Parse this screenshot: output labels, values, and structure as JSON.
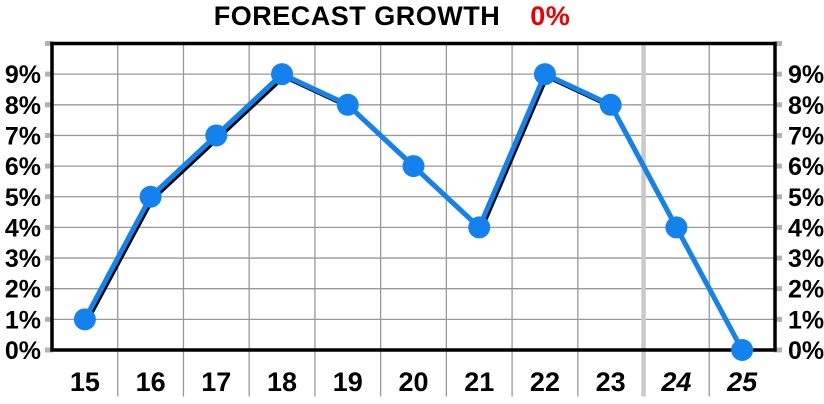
{
  "title_row": {
    "text": "FORECAST GROWTH",
    "value": "0%"
  },
  "chart_data": {
    "type": "line",
    "title": "FORECAST GROWTH",
    "title_value": "0%",
    "categories": [
      "15",
      "16",
      "17",
      "18",
      "19",
      "20",
      "21",
      "22",
      "23",
      "24",
      "25"
    ],
    "values": [
      1,
      5,
      7,
      9,
      8,
      6,
      4,
      9,
      8,
      4,
      0
    ],
    "italic_categories": [
      "24",
      "25"
    ],
    "separator_boundary_index": 9,
    "ylabels": [
      "0%",
      "1%",
      "2%",
      "3%",
      "4%",
      "5%",
      "6%",
      "7%",
      "8%",
      "9%"
    ],
    "ylim": [
      0,
      10
    ],
    "y_tick_step": 1,
    "grid": true,
    "legend": "none",
    "xlabel": "",
    "ylabel": "",
    "colors": {
      "line": "#1482EE",
      "line_shadow": "#0a0a0a",
      "marker": "#1482EE",
      "grid": "#999999",
      "axis_border": "#000000",
      "tick_nub": "#b3b3b3",
      "separator": "#c9c9c9",
      "title_text": "#000000",
      "title_value": "#EE0000",
      "axis_label": "#000000",
      "background": "#ffffff"
    }
  }
}
